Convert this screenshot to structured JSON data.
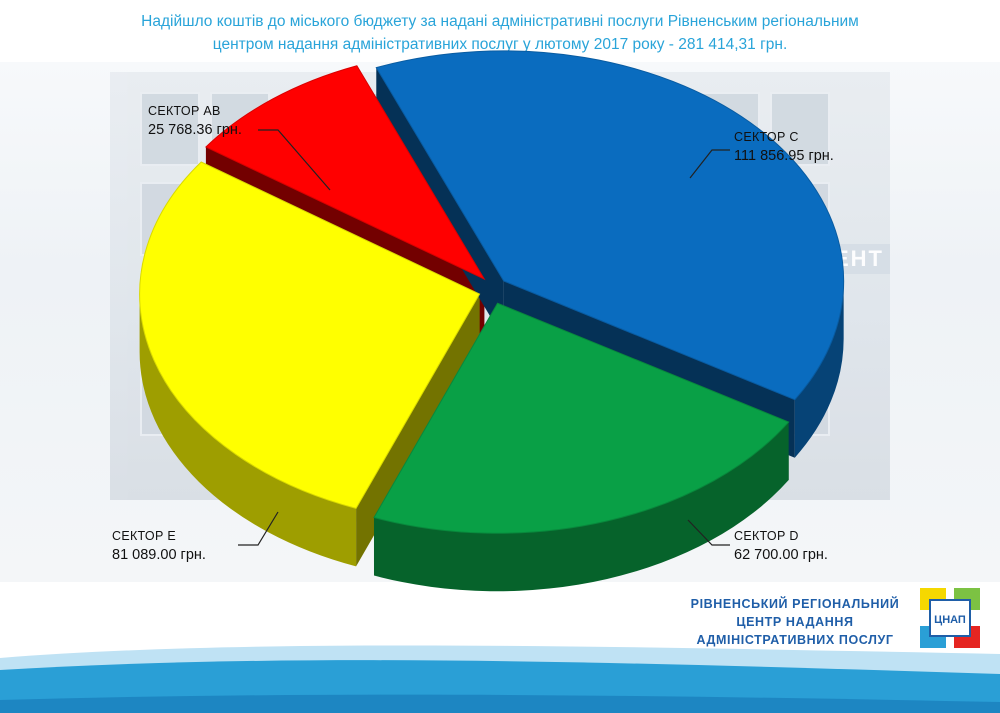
{
  "title_line1": "Надійшло коштів до міського бюджету за надані адміністративні послуги Рівненським регіональним",
  "title_line2": "центром надання адміністративних послуг у лютому 2017 року - 281 414,31 грн.",
  "building_sign": "ЦЕНТ",
  "org_name": [
    "РІВНЕНСЬКИЙ РЕГІОНАЛЬНИЙ",
    "ЦЕНТР НАДАННЯ",
    "АДМІНІСТРАТИВНИХ ПОСЛУГ"
  ],
  "logo_text": "ЦНАП",
  "colors": {
    "title": "#29a4d9",
    "org": "#1f5ea8",
    "wave": "#2a9fd6"
  },
  "chart_data": {
    "type": "pie",
    "title": "",
    "slices": [
      {
        "name": "СЕКТОР С",
        "value": 111856.95,
        "value_label": "111 856.95 грн.",
        "color": "#0a6cbf"
      },
      {
        "name": "СЕКТОР D",
        "value": 62700.0,
        "value_label": "62 700.00 грн.",
        "color": "#09a046"
      },
      {
        "name": "СЕКТОР Е",
        "value": 81089.0,
        "value_label": "81 089.00 грн.",
        "color": "#ffff00"
      },
      {
        "name": "СЕКТОР АВ",
        "value": 25768.36,
        "value_label": "25 768.36 грн.",
        "color": "#ff0000"
      }
    ]
  }
}
